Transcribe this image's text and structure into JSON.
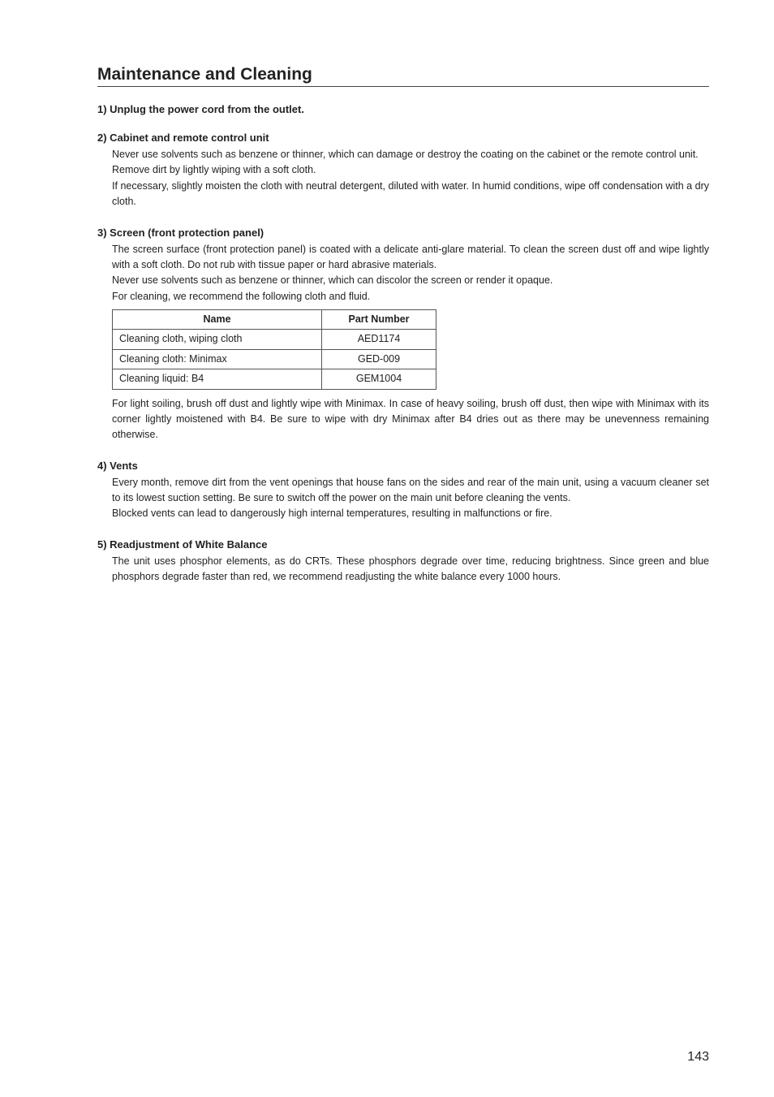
{
  "page_title": "Maintenance and Cleaning",
  "sections": {
    "s1": {
      "heading": "1) Unplug the power cord from the outlet."
    },
    "s2": {
      "heading": "2) Cabinet and remote control unit",
      "p1": "Never use solvents such as benzene or thinner, which can damage or destroy the coating on the cabinet or the remote control unit.",
      "p2": "Remove dirt by lightly wiping with a soft cloth.",
      "p3": "If necessary, slightly moisten the cloth with neutral detergent, diluted with water. In humid conditions, wipe off condensation with a dry cloth."
    },
    "s3": {
      "heading": "3) Screen (front protection panel)",
      "p1": "The screen surface (front protection panel) is coated with a delicate anti-glare material. To clean the screen dust off and wipe lightly with a soft cloth. Do not rub with tissue paper or hard abrasive materials.",
      "p2": "Never use solvents such as benzene or thinner, which can discolor the screen or render it opaque.",
      "p3": "For cleaning, we recommend the following cloth and fluid.",
      "p4": "For light soiling, brush off dust and lightly wipe with Minimax. In case of heavy soiling, brush off dust, then wipe with Minimax with its corner lightly moistened with B4. Be sure to wipe with dry Minimax after B4 dries out as there may be unevenness remaining otherwise.",
      "table": {
        "headers": {
          "name": "Name",
          "part": "Part Number"
        },
        "rows": [
          {
            "name": "Cleaning cloth, wiping cloth",
            "part": "AED1174"
          },
          {
            "name": "Cleaning cloth: Minimax",
            "part": "GED-009"
          },
          {
            "name": "Cleaning liquid: B4",
            "part": "GEM1004"
          }
        ]
      }
    },
    "s4": {
      "heading": "4) Vents",
      "p1": "Every month, remove dirt from the vent openings that house fans on the sides and rear of the main unit, using a vacuum cleaner set to its lowest suction setting. Be sure to switch off the power on the main unit before cleaning the vents.",
      "p2": "Blocked vents can lead to dangerously high internal temperatures, resulting in malfunctions or fire."
    },
    "s5": {
      "heading": "5) Readjustment of White Balance",
      "p1": "The unit uses phosphor elements, as do CRTs. These phosphors degrade over time, reducing brightness. Since green and blue phosphors degrade faster than red, we recommend readjusting the white balance every 1000 hours."
    }
  },
  "page_number": "143"
}
